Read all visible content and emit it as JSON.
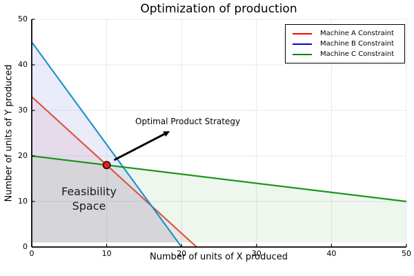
{
  "colors": {
    "background": "#ffffff",
    "grid": "#e8e8e8",
    "axis": "#000000",
    "text": "#000000",
    "arrow": "#000000"
  },
  "chart_data": {
    "type": "line",
    "title": "Optimization of production",
    "xlabel": "Number of units of X produced",
    "ylabel": "Number of units of Y produced",
    "xlim": [
      0,
      50
    ],
    "ylim": [
      0,
      50
    ],
    "x_ticks": [
      0,
      10,
      20,
      30,
      40,
      50
    ],
    "y_ticks": [
      0,
      10,
      20,
      30,
      40,
      50
    ],
    "grid": true,
    "legend_position": "top-right",
    "fill_baseline_y": 1,
    "series": [
      {
        "name": "Machine A Constraint",
        "points": [
          [
            0,
            33
          ],
          [
            22,
            0
          ]
        ],
        "line_color": "#dd5548",
        "legend_color": "#ff0000",
        "fill_color": "#cc3344",
        "fill_opacity": 0.09
      },
      {
        "name": "Machine B Constraint",
        "points": [
          [
            0,
            45
          ],
          [
            20,
            0
          ]
        ],
        "line_color": "#2093c7",
        "legend_color": "#0000dd",
        "fill_color": "#3344cc",
        "fill_opacity": 0.1
      },
      {
        "name": "Machine C Constraint",
        "points": [
          [
            0,
            20
          ],
          [
            50,
            10
          ]
        ],
        "line_color": "#1a961a",
        "legend_color": "#008000",
        "fill_color": "#2a9a2a",
        "fill_opacity": 0.08
      }
    ],
    "optimal_point": {
      "x": 10,
      "y": 18,
      "fill": "#e02020",
      "edge": "#2e0b0b"
    },
    "annotations": [
      {
        "text": "Optimal Product Strategy",
        "target_xy": [
          10,
          18
        ],
        "arrow_start": [
          11.0,
          19.1
        ],
        "arrow_end": [
          17.7,
          24.8
        ]
      },
      {
        "lines": [
          "Feasibility",
          "Space"
        ],
        "center_xy": [
          7.6,
          10.2
        ]
      }
    ]
  }
}
